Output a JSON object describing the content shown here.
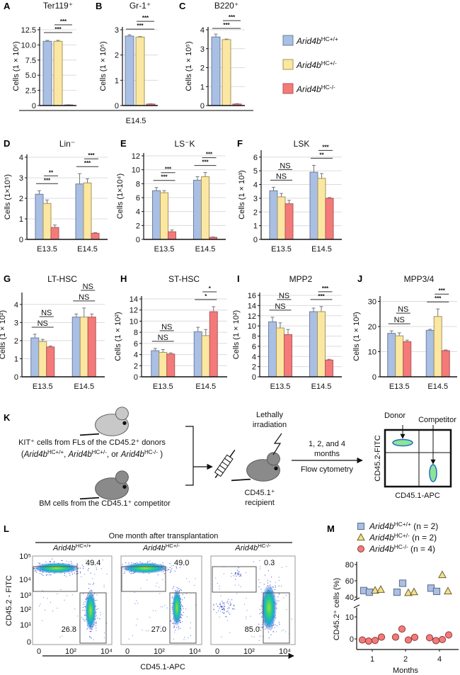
{
  "colors": {
    "wt": "#a9bfe3",
    "het": "#fbe7a1",
    "ko": "#f47a7a",
    "wt_stroke": "#6d7fa3",
    "het_stroke": "#a5955a",
    "ko_stroke": "#b0565a"
  },
  "legend": {
    "items": [
      {
        "name": "Arid4b",
        "sup": "HC+/+"
      },
      {
        "name": "Arid4b",
        "sup": "HC+/-"
      },
      {
        "name": "Arid4b",
        "sup": "HC-/-"
      }
    ]
  },
  "row1_xlabel": "E14.5",
  "chart_data": [
    {
      "panel": "A",
      "type": "bar",
      "title": "Ter119⁺",
      "ylabel": "Cells (1 × 10⁶)",
      "ylim": [
        0,
        12.5
      ],
      "yticks": [
        "0",
        "2.5",
        "5.0",
        "7.5",
        "10.0",
        "12.5"
      ],
      "ytick_values": [
        0,
        2.5,
        5,
        7.5,
        10,
        12.5
      ],
      "groups": [
        {
          "label": "",
          "values": [
            10.6,
            10.6,
            0.1
          ],
          "errors": [
            0.15,
            0.15,
            0.03
          ],
          "sig": [
            {
              "label": "***",
              "bars": [
                0,
                2
              ]
            },
            {
              "label": "***",
              "bars": [
                1,
                2
              ]
            }
          ]
        }
      ]
    },
    {
      "panel": "B",
      "type": "bar",
      "title": "Gr-1⁺",
      "ylabel": "Cells (1 × 10⁵)",
      "ylim": [
        0,
        3
      ],
      "yticks": [
        "0",
        "1",
        "2",
        "3"
      ],
      "ytick_values": [
        0,
        1,
        2,
        3
      ],
      "groups": [
        {
          "label": "",
          "values": [
            2.75,
            2.71,
            0.06
          ],
          "errors": [
            0.05,
            0.02,
            0.01
          ],
          "sig": [
            {
              "label": "***",
              "bars": [
                0,
                2
              ]
            },
            {
              "label": "***",
              "bars": [
                1,
                2
              ]
            }
          ]
        }
      ]
    },
    {
      "panel": "C",
      "type": "bar",
      "title": "B220⁺",
      "ylabel": "Cells (1 × 10⁵)",
      "ylim": [
        0,
        4
      ],
      "yticks": [
        "0",
        "1",
        "2",
        "3",
        "4"
      ],
      "ytick_values": [
        0,
        1,
        2,
        3,
        4
      ],
      "groups": [
        {
          "label": "",
          "values": [
            3.62,
            3.48,
            0.08
          ],
          "errors": [
            0.15,
            0.03,
            0.02
          ],
          "sig": [
            {
              "label": "***",
              "bars": [
                0,
                2
              ]
            },
            {
              "label": "***",
              "bars": [
                1,
                2
              ]
            }
          ]
        }
      ]
    },
    {
      "panel": "D",
      "type": "bar",
      "title": "Lin⁻",
      "ylabel": "Cells (1×10⁵)",
      "ylim": [
        0,
        4
      ],
      "yticks": [
        "0",
        "1",
        "2",
        "3",
        "4"
      ],
      "ytick_values": [
        0,
        1,
        2,
        3,
        4
      ],
      "groups": [
        {
          "label": "E13.5",
          "values": [
            2.2,
            1.75,
            0.58
          ],
          "errors": [
            0.17,
            0.17,
            0.12
          ],
          "sig": [
            {
              "label": "***",
              "bars": [
                0,
                2
              ]
            },
            {
              "label": "**",
              "bars": [
                1,
                2
              ]
            }
          ]
        },
        {
          "label": "E14.5",
          "values": [
            2.7,
            2.75,
            0.3
          ],
          "errors": [
            0.5,
            0.2,
            0.03
          ],
          "sig": [
            {
              "label": "***",
              "bars": [
                0,
                2
              ]
            },
            {
              "label": "***",
              "bars": [
                1,
                2
              ]
            }
          ]
        }
      ]
    },
    {
      "panel": "E",
      "type": "bar",
      "title": "LS⁻K",
      "ylabel": "Cells (1×10⁴)",
      "ylim": [
        0,
        12
      ],
      "yticks": [
        "0",
        "2",
        "4",
        "6",
        "8",
        "10",
        "12"
      ],
      "ytick_values": [
        0,
        2,
        4,
        6,
        8,
        10,
        12
      ],
      "groups": [
        {
          "label": "E13.5",
          "values": [
            7.0,
            6.7,
            1.1
          ],
          "errors": [
            0.45,
            0.3,
            0.25
          ],
          "sig": [
            {
              "label": "***",
              "bars": [
                0,
                2
              ]
            },
            {
              "label": "***",
              "bars": [
                1,
                2
              ]
            }
          ]
        },
        {
          "label": "E14.5",
          "values": [
            8.5,
            9.0,
            0.3
          ],
          "errors": [
            0.5,
            0.6,
            0.05
          ],
          "sig": [
            {
              "label": "***",
              "bars": [
                0,
                2
              ]
            },
            {
              "label": "***",
              "bars": [
                1,
                2
              ]
            }
          ]
        }
      ]
    },
    {
      "panel": "F",
      "type": "bar",
      "title": "LSK",
      "ylabel": "Cells (1 × 10³)",
      "ylim": [
        0,
        6.3
      ],
      "yticks": [
        "0",
        "1",
        "2",
        "3",
        "4",
        "5",
        "6"
      ],
      "ytick_values": [
        0,
        1,
        2,
        3,
        4,
        5,
        6
      ],
      "groups": [
        {
          "label": "E13.5",
          "values": [
            3.55,
            3.1,
            2.6
          ],
          "errors": [
            0.25,
            0.25,
            0.25
          ],
          "sig": [
            {
              "label": "NS",
              "bars": [
                0,
                2
              ]
            },
            {
              "label": "NS",
              "bars": [
                1,
                2
              ]
            }
          ]
        },
        {
          "label": "E14.5",
          "values": [
            4.9,
            4.45,
            3.0
          ],
          "errors": [
            0.5,
            0.35,
            0.05
          ],
          "sig": [
            {
              "label": "**",
              "bars": [
                0,
                2
              ]
            },
            {
              "label": "***",
              "bars": [
                1,
                2
              ]
            }
          ]
        }
      ]
    },
    {
      "panel": "G",
      "type": "bar",
      "title": "LT-HSC",
      "ylabel": "Cells (1 × 10²)",
      "ylim": [
        0,
        4.5
      ],
      "yticks": [
        "0",
        "1",
        "2",
        "3",
        "4"
      ],
      "ytick_values": [
        0,
        1,
        2,
        3,
        4
      ],
      "groups": [
        {
          "label": "E13.5",
          "values": [
            2.15,
            1.95,
            1.65
          ],
          "errors": [
            0.2,
            0.12,
            0.05
          ],
          "sig": [
            {
              "label": "NS",
              "bars": [
                0,
                2
              ]
            },
            {
              "label": "NS",
              "bars": [
                1,
                2
              ]
            }
          ]
        },
        {
          "label": "E14.5",
          "values": [
            3.3,
            3.3,
            3.3
          ],
          "errors": [
            0.17,
            0.5,
            0.17
          ],
          "sig": [
            {
              "label": "NS",
              "bars": [
                0,
                2
              ]
            },
            {
              "label": "NS",
              "bars": [
                1,
                2
              ]
            }
          ]
        }
      ]
    },
    {
      "panel": "H",
      "type": "bar",
      "title": "ST-HSC",
      "ylabel": "Cells (1 × 10²)",
      "ylim": [
        0,
        14
      ],
      "yticks": [
        "0",
        "2",
        "4",
        "6",
        "8",
        "10",
        "12",
        "14"
      ],
      "ytick_values": [
        0,
        2,
        4,
        6,
        8,
        10,
        12,
        14
      ],
      "groups": [
        {
          "label": "E13.5",
          "values": [
            4.7,
            4.4,
            4.1
          ],
          "errors": [
            0.4,
            0.5,
            0.2
          ],
          "sig": [
            {
              "label": "NS",
              "bars": [
                0,
                2
              ]
            },
            {
              "label": "NS",
              "bars": [
                1,
                2
              ]
            }
          ]
        },
        {
          "label": "E14.5",
          "values": [
            8.1,
            7.4,
            11.7
          ],
          "errors": [
            0.8,
            1.1,
            0.9
          ],
          "sig": [
            {
              "label": "*",
              "bars": [
                0,
                2
              ]
            },
            {
              "label": "*",
              "bars": [
                1,
                2
              ]
            }
          ]
        }
      ]
    },
    {
      "panel": "I",
      "type": "bar",
      "title": "MPP2",
      "ylabel": "Cells (1 × 10²)",
      "ylim": [
        0,
        16
      ],
      "yticks": [
        "0",
        "2",
        "4",
        "6",
        "8",
        "10",
        "12",
        "14",
        "16"
      ],
      "ytick_values": [
        0,
        2,
        4,
        6,
        8,
        10,
        12,
        14,
        16
      ],
      "groups": [
        {
          "label": "E13.5",
          "values": [
            10.8,
            9.6,
            8.3
          ],
          "errors": [
            0.9,
            1.0,
            1.0
          ],
          "sig": [
            {
              "label": "NS",
              "bars": [
                0,
                2
              ]
            },
            {
              "label": "NS",
              "bars": [
                1,
                2
              ]
            }
          ]
        },
        {
          "label": "E14.5",
          "values": [
            12.8,
            12.8,
            3.3
          ],
          "errors": [
            0.7,
            1.0,
            0.15
          ],
          "sig": [
            {
              "label": "***",
              "bars": [
                0,
                2
              ]
            },
            {
              "label": "***",
              "bars": [
                1,
                2
              ]
            }
          ]
        }
      ]
    },
    {
      "panel": "J",
      "type": "bar",
      "title": "MPP3/4",
      "ylabel": "Cells (1 × 10²)",
      "ylim": [
        0,
        31
      ],
      "yticks": [
        "0",
        "10",
        "20",
        "30"
      ],
      "ytick_values": [
        0,
        10,
        20,
        30
      ],
      "groups": [
        {
          "label": "E13.5",
          "values": [
            17.3,
            16.3,
            14.0
          ],
          "errors": [
            1.0,
            1.2,
            0.6
          ],
          "sig": [
            {
              "label": "NS",
              "bars": [
                0,
                2
              ]
            },
            {
              "label": "NS",
              "bars": [
                1,
                2
              ]
            }
          ]
        },
        {
          "label": "E14.5",
          "values": [
            18.5,
            24.0,
            10.4
          ],
          "errors": [
            0.4,
            3.0,
            0.3
          ],
          "sig": [
            {
              "label": "***",
              "bars": [
                0,
                2
              ]
            },
            {
              "label": "***",
              "bars": [
                1,
                2
              ]
            }
          ]
        }
      ]
    },
    {
      "panel": "M",
      "type": "scatter",
      "ylabel": "CD45.2⁺ cells (%)",
      "xlabel": "Months",
      "categories": [
        "1",
        "2",
        "4"
      ],
      "yticks_upper": [
        "40",
        "60",
        "80"
      ],
      "yticks_lower": [
        "0",
        "10"
      ],
      "y_axis_break": [
        13,
        38
      ],
      "legend": [
        {
          "name": "Arid4b",
          "sup": "HC+/+",
          "n": "(n = 2)",
          "marker": "square",
          "color": "#a9bfe3"
        },
        {
          "name": "Arid4b",
          "sup": "HC+/-",
          "n": "(n = 2)",
          "marker": "triangle",
          "color": "#fbe7a1"
        },
        {
          "name": "Arid4b",
          "sup": "HC-/-",
          "n": "(n = 4)",
          "marker": "circle",
          "color": "#f47a7a"
        }
      ],
      "series": [
        {
          "marker": "square",
          "values": [
            [
              48,
              46
            ],
            [
              46,
              57
            ],
            [
              51,
              47
            ]
          ]
        },
        {
          "marker": "triangle",
          "values": [
            [
              48,
              49
            ],
            [
              45,
              46
            ],
            [
              67,
              47
            ]
          ]
        },
        {
          "marker": "circle",
          "values": [
            [
              -0.5,
              -1,
              -0.7,
              0.8
            ],
            [
              0.8,
              4.5,
              -0.5,
              0.7
            ],
            [
              0.5,
              -0.8,
              -0.3,
              1.8
            ]
          ]
        }
      ]
    }
  ],
  "panelK": {
    "letter": "K",
    "donor_text": "KIT⁺ cells from FLs of the CD45.2⁺ donors",
    "donor_geno": [
      {
        "name": "Arid4b",
        "sup": "HC+/+"
      },
      {
        "name": "Arid4b",
        "sup": "HC+/-"
      },
      {
        "name": "Arid4b",
        "sup": "HC-/-"
      }
    ],
    "geno_sep": [
      ", ",
      ", or "
    ],
    "competitor_text": "BM cells from the CD45.1⁺ competitor",
    "irradiation": [
      "Lethally",
      "irradiation"
    ],
    "recipient": [
      "CD45.1⁺",
      "recipient"
    ],
    "timing": [
      "1, 2, and 4",
      "months"
    ],
    "method": "Flow cytometry",
    "flow_y": "CD45.2-FITC",
    "flow_x": "CD45.1-APC",
    "donor_label": "Donor",
    "competitor_label": "Competitor"
  },
  "panelL": {
    "letter": "L",
    "header": "One month after transplantation",
    "ylabel": "CD45.2 - FITC",
    "xlabel": "CD45.1-APC",
    "yticks": [
      "10⁵",
      "10⁴",
      "10³",
      "10²",
      "10¹",
      "0"
    ],
    "xticks": [
      "0",
      "10²",
      "10⁴"
    ],
    "plots": [
      {
        "name": "Arid4b",
        "sup": "HC+/+",
        "upper": "49.4",
        "lower": "26.8"
      },
      {
        "name": "Arid4b",
        "sup": "HC+/-",
        "upper": "49.0",
        "lower": "27.0"
      },
      {
        "name": "Arid4b",
        "sup": "HC-/-",
        "upper": "0.3",
        "lower": "85.0"
      }
    ]
  }
}
